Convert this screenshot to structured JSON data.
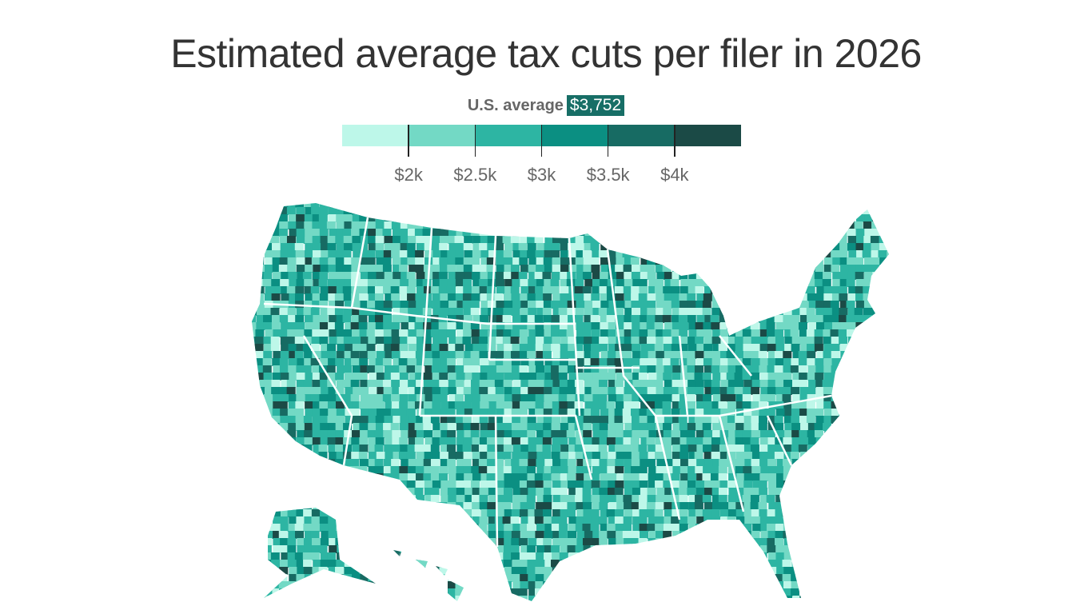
{
  "title": "Estimated average tax cuts per filer in 2026",
  "legend": {
    "average_label": "U.S. average",
    "average_value": "$3,752",
    "colors": [
      "#bdf7e9",
      "#73d9c5",
      "#2db5a3",
      "#0b8f82",
      "#176b63",
      "#1b4a46"
    ],
    "ticks": [
      "$2k",
      "$2.5k",
      "$3k",
      "$3.5k",
      "$4k"
    ]
  },
  "map": {
    "type": "county choropleth",
    "region": "United States (incl. Alaska, Hawaii)"
  }
}
